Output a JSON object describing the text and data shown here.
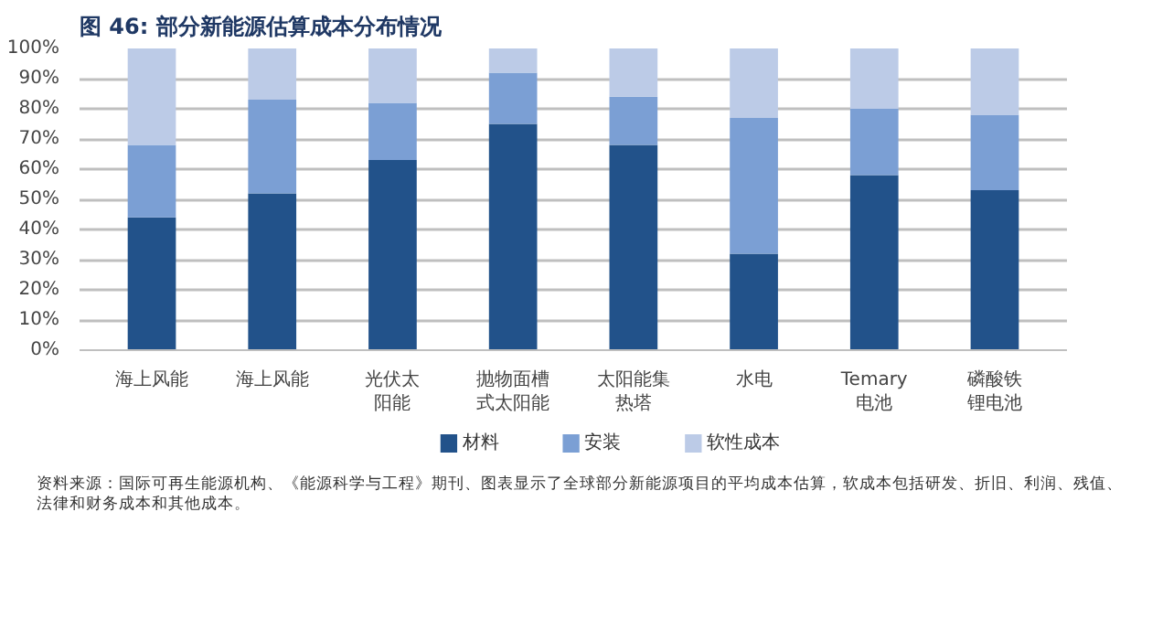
{
  "chart_data": {
    "type": "bar",
    "stacked": true,
    "title": "图 46:  部分新能源估算成本分布情况",
    "categories": [
      "海上风能",
      "海上风能",
      "光伏太阳能",
      "抛物面槽式太阳能",
      "太阳能集热塔",
      "水电",
      "Temary电池",
      "磷酸铁锂电池"
    ],
    "series": [
      {
        "name": "材料",
        "color": "#22528a",
        "values": [
          44,
          52,
          63,
          75,
          68,
          32,
          58,
          53
        ]
      },
      {
        "name": "安装",
        "color": "#7b9fd4",
        "values": [
          24,
          31,
          19,
          17,
          16,
          45,
          22,
          25
        ]
      },
      {
        "name": "软性成本",
        "color": "#bccbe7",
        "values": [
          32,
          17,
          18,
          8,
          16,
          23,
          20,
          22
        ]
      }
    ],
    "ylim": [
      0,
      100
    ],
    "yticks": [
      {
        "value": 0,
        "label": "0%"
      },
      {
        "value": 10,
        "label": "10%"
      },
      {
        "value": 20,
        "label": "20%"
      },
      {
        "value": 30,
        "label": "30%"
      },
      {
        "value": 40,
        "label": "40%"
      },
      {
        "value": 50,
        "label": "50%"
      },
      {
        "value": 60,
        "label": "60%"
      },
      {
        "value": 70,
        "label": "70%"
      },
      {
        "value": 80,
        "label": "80%"
      },
      {
        "value": 90,
        "label": "90%"
      },
      {
        "value": 100,
        "label": "100%"
      }
    ],
    "grid": "y",
    "legend": "bottom",
    "annotations": [
      "资料来源：国际可再生能源机构、《能源科学与工程》期刊、图表显示了全球部分新能源项目的平均成本估算，软成本包括研发、折旧、利润、残值、法律和财务成本和其他成本。"
    ]
  }
}
